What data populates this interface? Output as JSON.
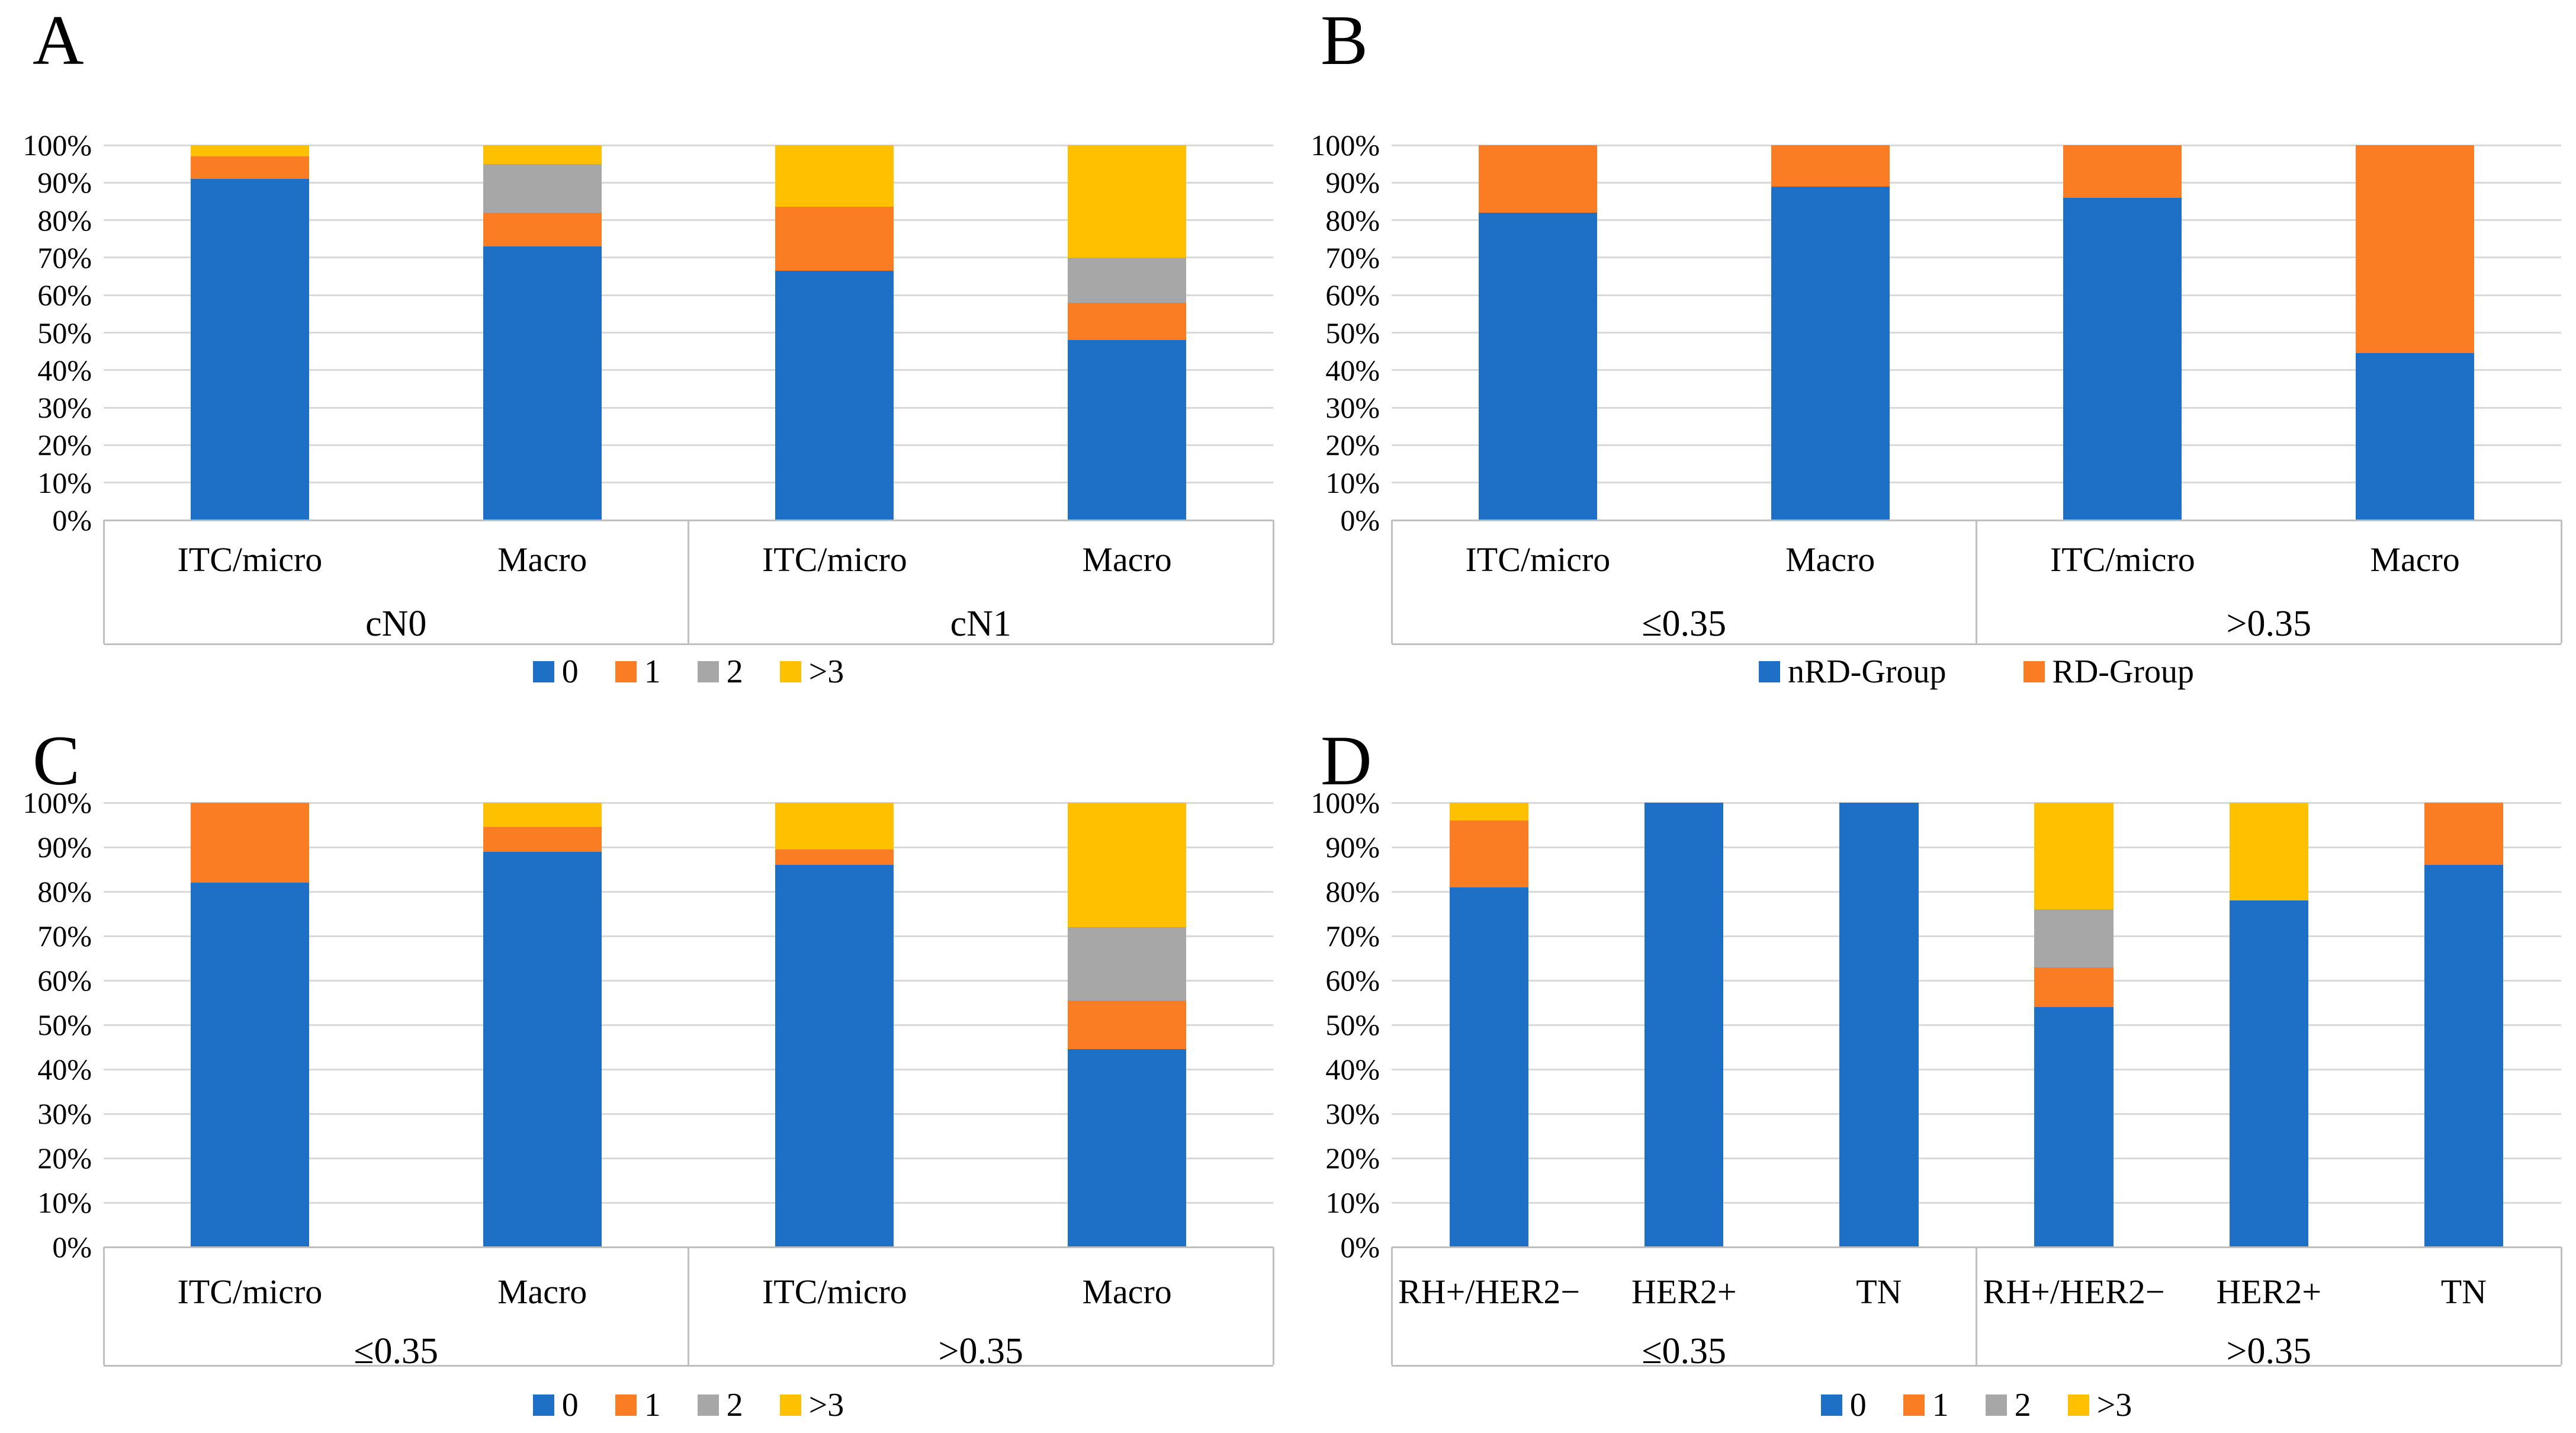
{
  "figure": {
    "background": "#FFFFFF"
  },
  "colors": {
    "blue": "#1D70C6",
    "orange": "#FB7D23",
    "gray": "#A7A7A7",
    "yellow": "#FFC000",
    "grid": "#D9D9D9",
    "box": "#C0C0C0",
    "text": "#000000"
  },
  "chart_data": [
    {
      "id": "A",
      "type": "bar",
      "stacked": true,
      "unit": "percent",
      "title": "A",
      "ylim": [
        0,
        100
      ],
      "grid": true,
      "legend_position": "bottom",
      "yticks": [
        "0%",
        "10%",
        "20%",
        "30%",
        "40%",
        "50%",
        "60%",
        "70%",
        "80%",
        "90%",
        "100%"
      ],
      "groups": [
        {
          "label": "cN0",
          "categories": [
            "ITC/micro",
            "Macro"
          ]
        },
        {
          "label": "cN1",
          "categories": [
            "ITC/micro",
            "Macro"
          ]
        }
      ],
      "legend": [
        {
          "label": "0",
          "color_key": "blue"
        },
        {
          "label": "1",
          "color_key": "orange"
        },
        {
          "label": "2",
          "color_key": "gray"
        },
        {
          "label": ">3",
          "color_key": "yellow"
        }
      ],
      "series": [
        {
          "name": "0",
          "color_key": "blue",
          "values": [
            91,
            73,
            66.5,
            48
          ]
        },
        {
          "name": "1",
          "color_key": "orange",
          "values": [
            6,
            9,
            17,
            10
          ]
        },
        {
          "name": "2",
          "color_key": "gray",
          "values": [
            0,
            13,
            0,
            12
          ]
        },
        {
          "name": ">3",
          "color_key": "yellow",
          "values": [
            3,
            5,
            16.5,
            30
          ]
        }
      ]
    },
    {
      "id": "B",
      "type": "bar",
      "stacked": true,
      "unit": "percent",
      "title": "B",
      "ylim": [
        0,
        100
      ],
      "grid": true,
      "legend_position": "bottom",
      "yticks": [
        "0%",
        "10%",
        "20%",
        "30%",
        "40%",
        "50%",
        "60%",
        "70%",
        "80%",
        "90%",
        "100%"
      ],
      "groups": [
        {
          "label": "≤0.35",
          "categories": [
            "ITC/micro",
            "Macro"
          ]
        },
        {
          "label": ">0.35",
          "categories": [
            "ITC/micro",
            "Macro"
          ]
        }
      ],
      "legend": [
        {
          "label": "nRD-Group",
          "color_key": "blue"
        },
        {
          "label": "RD-Group",
          "color_key": "orange"
        }
      ],
      "series": [
        {
          "name": "nRD-Group",
          "color_key": "blue",
          "values": [
            82,
            89,
            86,
            44.5
          ]
        },
        {
          "name": "RD-Group",
          "color_key": "orange",
          "values": [
            18,
            11,
            14,
            55.5
          ]
        }
      ]
    },
    {
      "id": "C",
      "type": "bar",
      "stacked": true,
      "unit": "percent",
      "title": "C",
      "ylim": [
        0,
        100
      ],
      "grid": true,
      "legend_position": "bottom",
      "yticks": [
        "0%",
        "10%",
        "20%",
        "30%",
        "40%",
        "50%",
        "60%",
        "70%",
        "80%",
        "90%",
        "100%"
      ],
      "groups": [
        {
          "label": "≤0.35",
          "categories": [
            "ITC/micro",
            "Macro"
          ]
        },
        {
          "label": ">0.35",
          "categories": [
            "ITC/micro",
            "Macro"
          ]
        }
      ],
      "legend": [
        {
          "label": "0",
          "color_key": "blue"
        },
        {
          "label": "1",
          "color_key": "orange"
        },
        {
          "label": "2",
          "color_key": "gray"
        },
        {
          "label": ">3",
          "color_key": "yellow"
        }
      ],
      "series": [
        {
          "name": "0",
          "color_key": "blue",
          "values": [
            82,
            89,
            86,
            44.5
          ]
        },
        {
          "name": "1",
          "color_key": "orange",
          "values": [
            18,
            5.5,
            3.5,
            11
          ]
        },
        {
          "name": "2",
          "color_key": "gray",
          "values": [
            0,
            0,
            0,
            16.5
          ]
        },
        {
          "name": ">3",
          "color_key": "yellow",
          "values": [
            0,
            5.5,
            10.5,
            28
          ]
        }
      ]
    },
    {
      "id": "D",
      "type": "bar",
      "stacked": true,
      "unit": "percent",
      "title": "D",
      "ylim": [
        0,
        100
      ],
      "grid": true,
      "legend_position": "bottom",
      "yticks": [
        "0%",
        "10%",
        "20%",
        "30%",
        "40%",
        "50%",
        "60%",
        "70%",
        "80%",
        "90%",
        "100%"
      ],
      "groups": [
        {
          "label": "≤0.35",
          "categories": [
            "RH+/HER2−",
            "HER2+",
            "TN"
          ]
        },
        {
          "label": ">0.35",
          "categories": [
            "RH+/HER2−",
            "HER2+",
            "TN"
          ]
        }
      ],
      "legend": [
        {
          "label": "0",
          "color_key": "blue"
        },
        {
          "label": "1",
          "color_key": "orange"
        },
        {
          "label": "2",
          "color_key": "gray"
        },
        {
          "label": ">3",
          "color_key": "yellow"
        }
      ],
      "series": [
        {
          "name": "0",
          "color_key": "blue",
          "values": [
            81,
            100,
            100,
            54,
            78,
            86
          ]
        },
        {
          "name": "1",
          "color_key": "orange",
          "values": [
            15,
            0,
            0,
            9,
            0,
            14
          ]
        },
        {
          "name": "2",
          "color_key": "gray",
          "values": [
            0,
            0,
            0,
            13,
            0,
            0
          ]
        },
        {
          "name": ">3",
          "color_key": "yellow",
          "values": [
            4,
            0,
            0,
            24,
            22,
            0
          ]
        }
      ]
    }
  ]
}
